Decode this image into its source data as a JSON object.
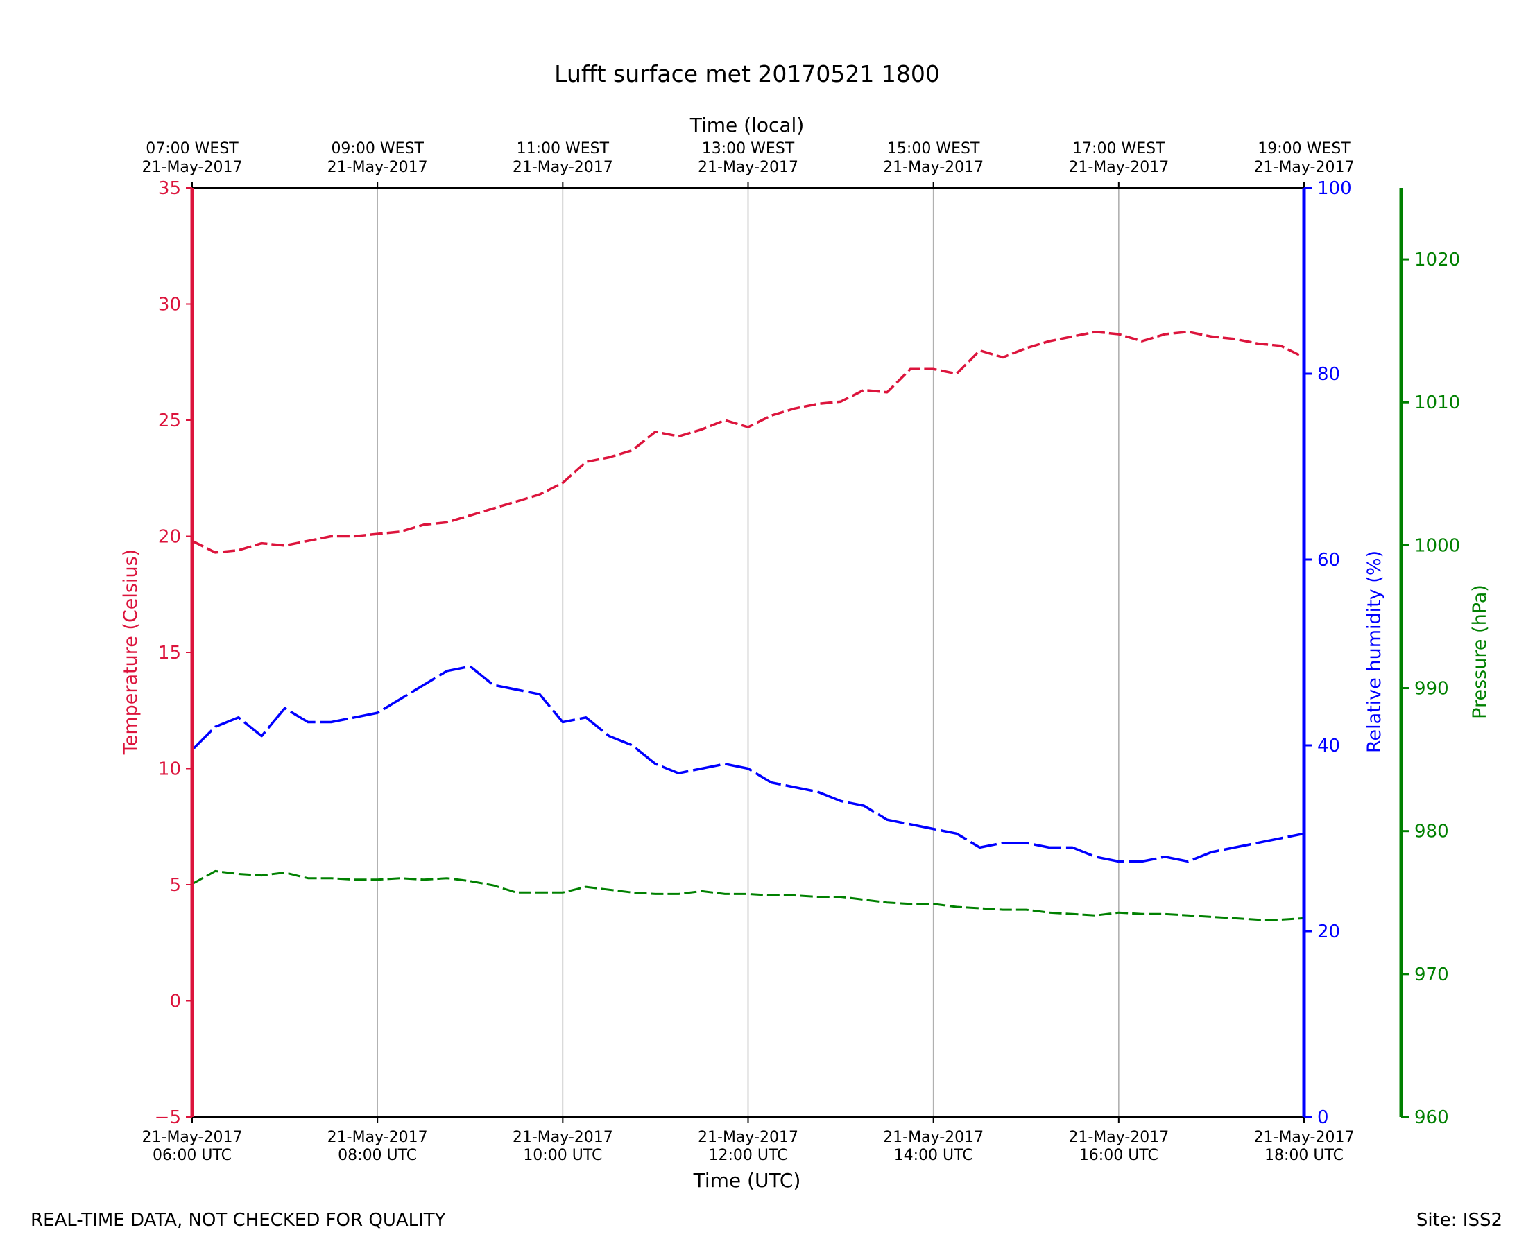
{
  "footer": {
    "disclaimer": "REAL-TIME DATA, NOT CHECKED FOR QUALITY",
    "site": "Site: ISS2"
  },
  "colors": {
    "temperature": "#dc143c",
    "humidity": "#0000ff",
    "pressure": "#008000",
    "grid": "#b0b0b0",
    "text": "#000000"
  },
  "chart_data": {
    "type": "line",
    "title": "Lufft surface met 20170521 1800",
    "xlabel": "Time (UTC)",
    "x2label": "Time (local)",
    "xlim": [
      6,
      18
    ],
    "x_ticks": [
      6,
      8,
      10,
      12,
      14,
      16,
      18
    ],
    "x_tick_labels": [
      [
        "21-May-2017",
        "06:00 UTC"
      ],
      [
        "21-May-2017",
        "08:00 UTC"
      ],
      [
        "21-May-2017",
        "10:00 UTC"
      ],
      [
        "21-May-2017",
        "12:00 UTC"
      ],
      [
        "21-May-2017",
        "14:00 UTC"
      ],
      [
        "21-May-2017",
        "16:00 UTC"
      ],
      [
        "21-May-2017",
        "18:00 UTC"
      ]
    ],
    "x2_tick_labels": [
      [
        "07:00 WEST",
        "21-May-2017"
      ],
      [
        "09:00 WEST",
        "21-May-2017"
      ],
      [
        "11:00 WEST",
        "21-May-2017"
      ],
      [
        "13:00 WEST",
        "21-May-2017"
      ],
      [
        "15:00 WEST",
        "21-May-2017"
      ],
      [
        "17:00 WEST",
        "21-May-2017"
      ],
      [
        "19:00 WEST",
        "21-May-2017"
      ]
    ],
    "axes": {
      "temperature": {
        "label": "Temperature (Celsius)",
        "ylim": [
          -5,
          35
        ],
        "ticks": [
          -5,
          0,
          5,
          10,
          15,
          20,
          25,
          30,
          35
        ],
        "tick_labels": [
          "−5",
          "0",
          "5",
          "10",
          "15",
          "20",
          "25",
          "30",
          "35"
        ]
      },
      "humidity": {
        "label": "Relative humidity (%)",
        "ylim": [
          0,
          100
        ],
        "ticks": [
          0,
          20,
          40,
          60,
          80,
          100
        ],
        "tick_labels": [
          "0",
          "20",
          "40",
          "60",
          "80",
          "100"
        ]
      },
      "pressure": {
        "label": "Pressure (hPa)",
        "ylim": [
          960,
          1025
        ],
        "ticks": [
          960,
          970,
          980,
          990,
          1000,
          1010,
          1020
        ],
        "tick_labels": [
          "960",
          "970",
          "980",
          "990",
          "1000",
          "1010",
          "1020"
        ]
      }
    },
    "series": [
      {
        "name": "Temperature",
        "axis": "temperature",
        "x": [
          6.0,
          6.25,
          6.5,
          6.75,
          7.0,
          7.25,
          7.5,
          7.75,
          8.0,
          8.25,
          8.5,
          8.75,
          9.0,
          9.25,
          9.5,
          9.75,
          10.0,
          10.25,
          10.5,
          10.75,
          11.0,
          11.25,
          11.5,
          11.75,
          12.0,
          12.25,
          12.5,
          12.75,
          13.0,
          13.25,
          13.5,
          13.75,
          14.0,
          14.25,
          14.5,
          14.75,
          15.0,
          15.25,
          15.5,
          15.75,
          16.0,
          16.25,
          16.5,
          16.75,
          17.0,
          17.25,
          17.5,
          17.75,
          18.0
        ],
        "values": [
          19.8,
          19.3,
          19.4,
          19.7,
          19.6,
          19.8,
          20.0,
          20.0,
          20.1,
          20.2,
          20.5,
          20.6,
          20.9,
          21.2,
          21.5,
          21.8,
          22.3,
          23.2,
          23.4,
          23.7,
          24.5,
          24.3,
          24.6,
          25.0,
          24.7,
          25.2,
          25.5,
          25.7,
          25.8,
          26.3,
          26.2,
          27.2,
          27.2,
          27.0,
          28.0,
          27.7,
          28.1,
          28.4,
          28.6,
          28.8,
          28.7,
          28.4,
          28.7,
          28.8,
          28.6,
          28.5,
          28.3,
          28.2,
          27.7
        ],
        "unit": "Celsius"
      },
      {
        "name": "Relative humidity",
        "axis": "humidity",
        "x": [
          6.0,
          6.25,
          6.5,
          6.75,
          7.0,
          7.25,
          7.5,
          7.75,
          8.0,
          8.25,
          8.5,
          8.75,
          9.0,
          9.25,
          9.5,
          9.75,
          10.0,
          10.25,
          10.5,
          10.75,
          11.0,
          11.25,
          11.5,
          11.75,
          12.0,
          12.25,
          12.5,
          12.75,
          13.0,
          13.25,
          13.5,
          13.75,
          14.0,
          14.25,
          14.5,
          14.75,
          15.0,
          15.25,
          15.5,
          15.75,
          16.0,
          16.25,
          16.5,
          16.75,
          17.0,
          17.25,
          17.5,
          17.75,
          18.0
        ],
        "values": [
          39.5,
          42.0,
          43.0,
          41.0,
          44.0,
          42.5,
          42.5,
          43.0,
          43.5,
          45.0,
          46.5,
          48.0,
          48.5,
          46.5,
          46.0,
          45.5,
          42.5,
          43.0,
          41.0,
          40.0,
          38.0,
          37.0,
          37.5,
          38.0,
          37.5,
          36.0,
          35.5,
          35.0,
          34.0,
          33.5,
          32.0,
          31.5,
          31.0,
          30.5,
          29.0,
          29.5,
          29.5,
          29.0,
          29.0,
          28.0,
          27.5,
          27.5,
          28.0,
          27.5,
          28.5,
          29.0,
          29.5,
          30.0,
          30.5
        ],
        "unit": "%"
      },
      {
        "name": "Pressure",
        "axis": "pressure",
        "x": [
          6.0,
          6.25,
          6.5,
          6.75,
          7.0,
          7.25,
          7.5,
          7.75,
          8.0,
          8.25,
          8.5,
          8.75,
          9.0,
          9.25,
          9.5,
          9.75,
          10.0,
          10.25,
          10.5,
          10.75,
          11.0,
          11.25,
          11.5,
          11.75,
          12.0,
          12.25,
          12.5,
          12.75,
          13.0,
          13.25,
          13.5,
          13.75,
          14.0,
          14.25,
          14.5,
          14.75,
          15.0,
          15.25,
          15.5,
          15.75,
          16.0,
          16.25,
          16.5,
          16.75,
          17.0,
          17.25,
          17.5,
          17.75,
          18.0
        ],
        "values": [
          976.3,
          977.2,
          977.0,
          976.9,
          977.1,
          976.7,
          976.7,
          976.6,
          976.6,
          976.7,
          976.6,
          976.7,
          976.5,
          976.2,
          975.7,
          975.7,
          975.7,
          976.1,
          975.9,
          975.7,
          975.6,
          975.6,
          975.8,
          975.6,
          975.6,
          975.5,
          975.5,
          975.4,
          975.4,
          975.2,
          975.0,
          974.9,
          974.9,
          974.7,
          974.6,
          974.5,
          974.5,
          974.3,
          974.2,
          974.1,
          974.3,
          974.2,
          974.2,
          974.1,
          974.0,
          973.9,
          973.8,
          973.8,
          973.9
        ],
        "unit": "hPa"
      }
    ]
  }
}
